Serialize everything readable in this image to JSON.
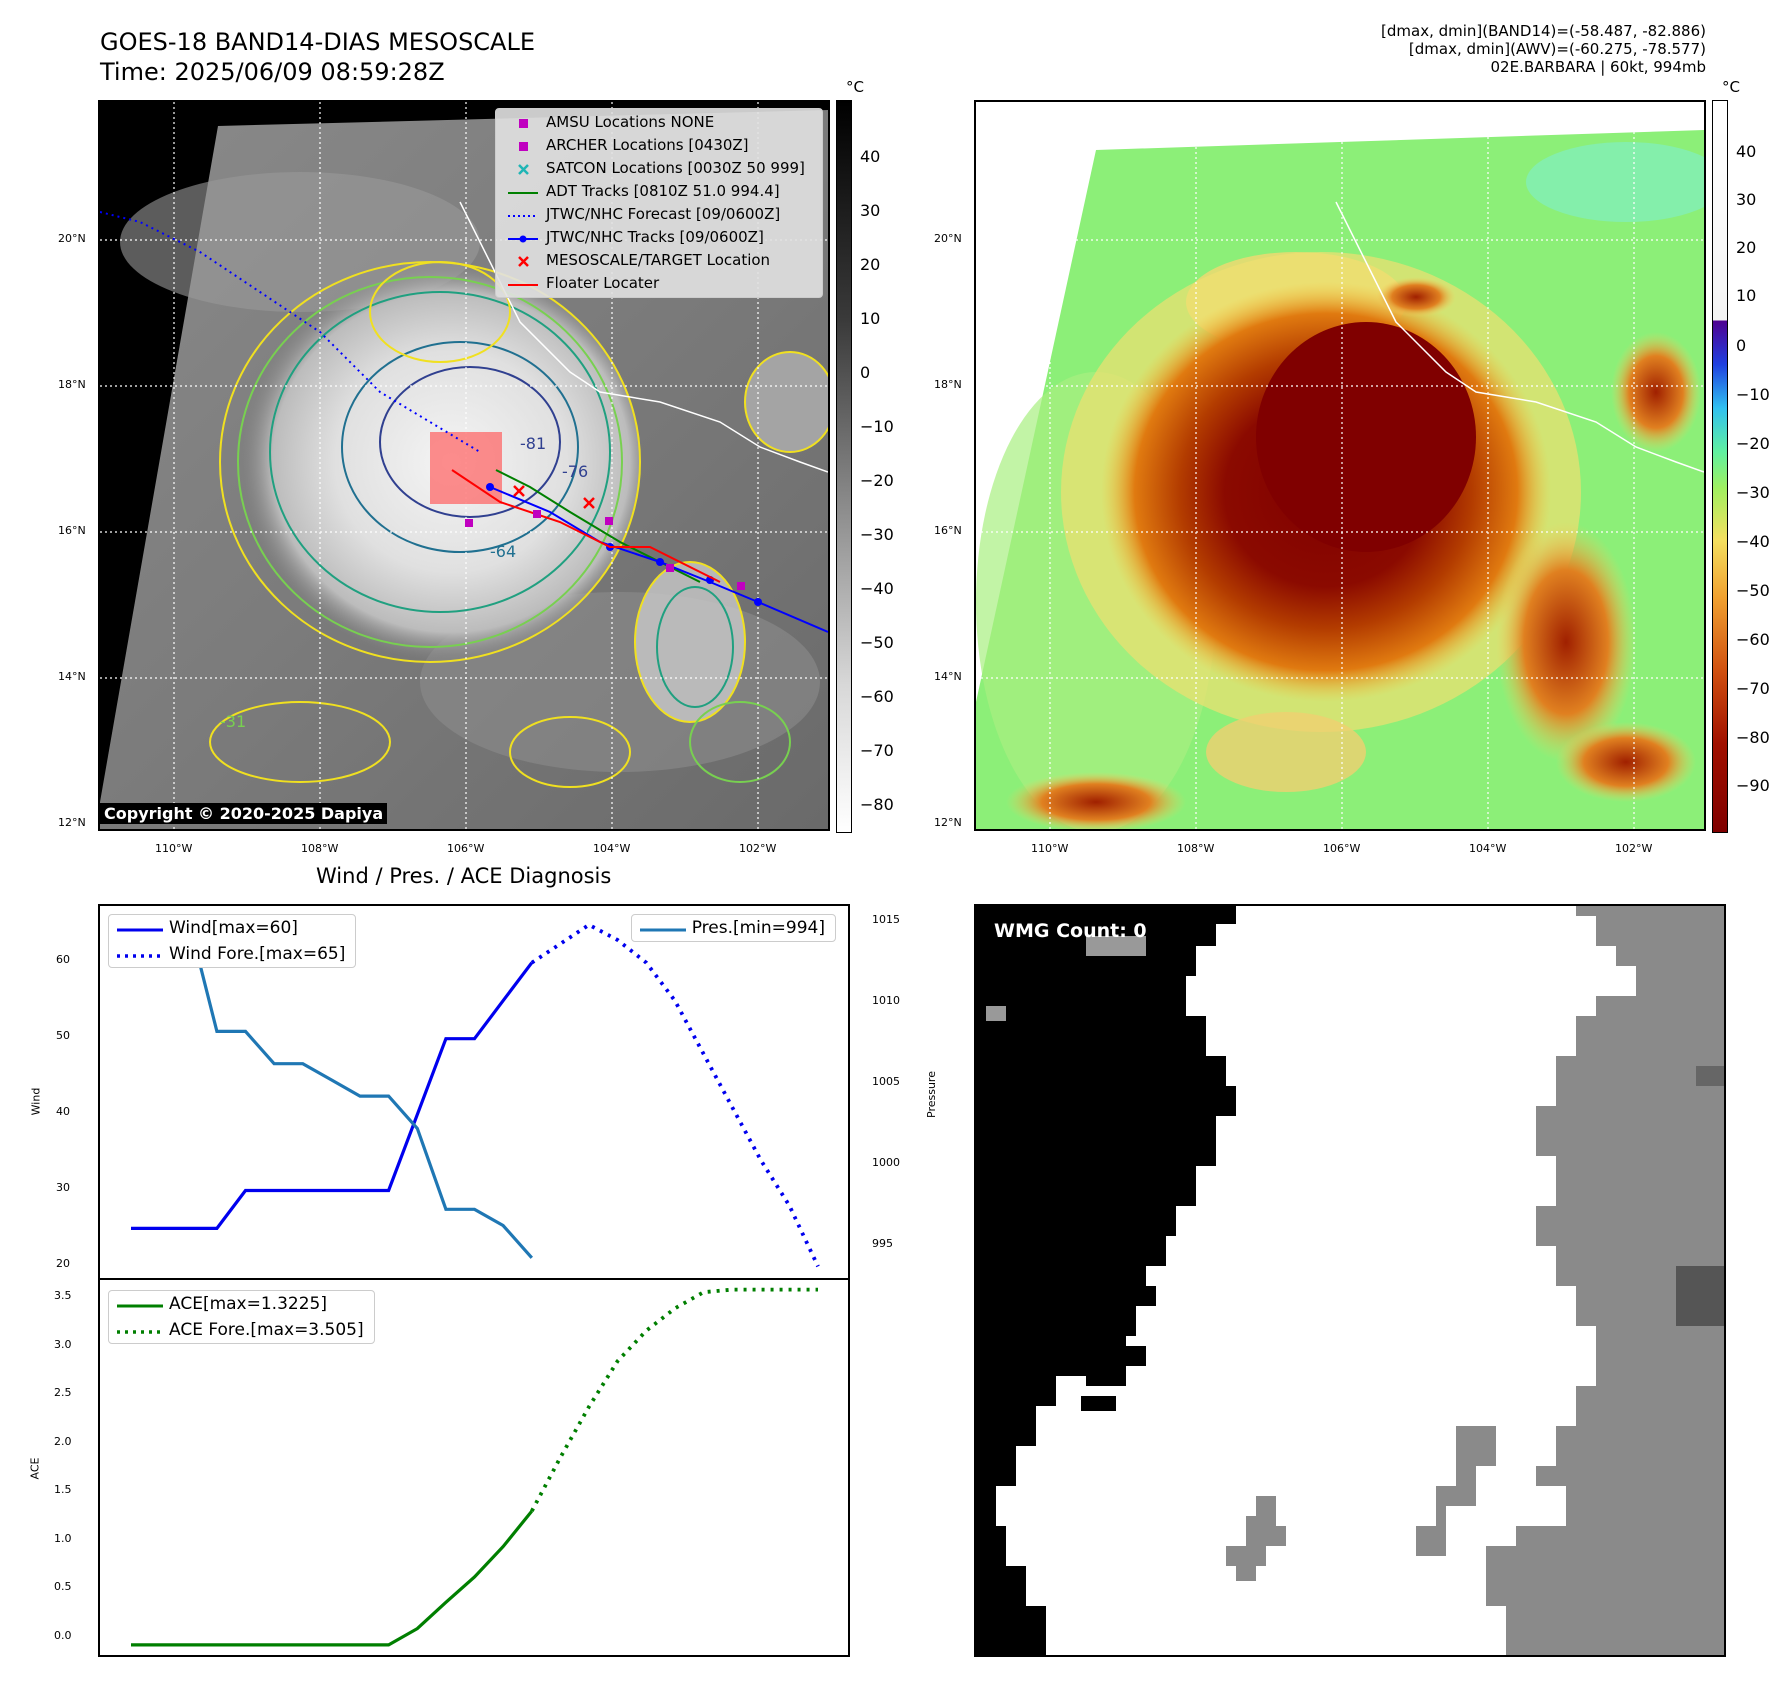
{
  "header": {
    "title_line1": "GOES-18 BAND14-DIAS MESOSCALE",
    "title_line2": "Time: 2025/06/09 08:59:28Z",
    "info_line1": "[dmax, dmin](BAND14)=(-58.487, -82.886)",
    "info_line2": "[dmax, dmin](AWV)=(-60.275, -78.577)",
    "info_line3": "02E.BARBARA | 60kt, 994mb"
  },
  "map": {
    "lat_ticks": [
      "20°N",
      "18°N",
      "16°N",
      "14°N",
      "12°N"
    ],
    "lon_ticks": [
      "110°W",
      "108°W",
      "106°W",
      "104°W",
      "102°W"
    ],
    "contour_labels": [
      "-81",
      "-76",
      "-64",
      "-31"
    ],
    "legend": [
      {
        "label": "AMSU Locations NONE",
        "icon": "square-marker",
        "color": "#c000c0"
      },
      {
        "label": "ARCHER Locations [0430Z]",
        "icon": "square-marker",
        "color": "#c000c0"
      },
      {
        "label": "SATCON Locations [0030Z 50 999]",
        "icon": "x-marker",
        "color": "#1fb5b5"
      },
      {
        "label": "ADT Tracks [0810Z 51.0 994.4]",
        "icon": "line",
        "color": "#008000"
      },
      {
        "label": "JTWC/NHC Forecast [09/0600Z]",
        "icon": "dotted-line",
        "color": "#0000ff"
      },
      {
        "label": "JTWC/NHC Tracks [09/0600Z]",
        "icon": "line-dot",
        "color": "#0000ff"
      },
      {
        "label": "MESOSCALE/TARGET Location",
        "icon": "x-marker",
        "color": "#ff0000"
      },
      {
        "label": "Floater Locater",
        "icon": "line",
        "color": "#ff0000"
      }
    ],
    "copyright": "Copyright © 2020-2025 Dapiya",
    "colorbar_unit": "°C",
    "colorbar_left_ticks": [
      "40",
      "30",
      "20",
      "10",
      "0",
      "−10",
      "−20",
      "−30",
      "−40",
      "−50",
      "−60",
      "−70",
      "−80"
    ],
    "colorbar_right_ticks": [
      "40",
      "30",
      "20",
      "10",
      "0",
      "−10",
      "−20",
      "−30",
      "−40",
      "−50",
      "−60",
      "−70",
      "−80",
      "−90"
    ]
  },
  "diagnosis": {
    "title": "Wind / Pres. / ACE Diagnosis",
    "wind_ylabel": "Wind",
    "pres_ylabel": "Pressure",
    "ace_ylabel": "ACE",
    "wind_ticks": [
      "60",
      "50",
      "40",
      "30",
      "20"
    ],
    "pres_ticks": [
      "1015",
      "1010",
      "1005",
      "1000",
      "995"
    ],
    "ace_ticks": [
      "3.5",
      "3.0",
      "2.5",
      "2.0",
      "1.5",
      "1.0",
      "0.5",
      "0.0"
    ],
    "legend_wind": "Wind[max=60]",
    "legend_wind_fore": "Wind Fore.[max=65]",
    "legend_pres": "Pres.[min=994]",
    "legend_ace": "ACE[max=1.3225]",
    "legend_ace_fore": "ACE Fore.[max=3.505]",
    "colors": {
      "wind": "#0000ee",
      "pres": "#1f77b4",
      "ace": "#007f00"
    }
  },
  "wmg": {
    "label": "WMG Count: 0"
  },
  "chart_data": [
    {
      "type": "line",
      "title": "Wind / Pres. / ACE Diagnosis",
      "ylabel": "Wind",
      "ylim": [
        19,
        68
      ],
      "x": [
        0,
        1,
        2,
        3,
        4,
        5,
        6,
        7,
        8,
        9,
        10,
        11,
        12,
        13,
        14,
        15,
        16,
        17,
        18,
        19,
        20,
        21,
        22,
        23,
        24
      ],
      "series": [
        {
          "name": "Wind[max=60]",
          "values": [
            25,
            25,
            25,
            25,
            30,
            30,
            30,
            30,
            30,
            30,
            40,
            50,
            50,
            55,
            60,
            null,
            null,
            null,
            null,
            null,
            null,
            null,
            null,
            null,
            null
          ]
        },
        {
          "name": "Wind Fore.[max=65]",
          "values": [
            null,
            null,
            null,
            null,
            null,
            null,
            null,
            null,
            null,
            null,
            null,
            null,
            null,
            null,
            60,
            62.5,
            65,
            63,
            60,
            55,
            48,
            41,
            34,
            28,
            20
          ]
        }
      ]
    },
    {
      "type": "line",
      "ylabel": "Pressure",
      "ylim": [
        993,
        1016
      ],
      "x": [
        0,
        1,
        2,
        3,
        4,
        5,
        6,
        7,
        8,
        9,
        10,
        11,
        12,
        13,
        14
      ],
      "series": [
        {
          "name": "Pres.[min=994]",
          "values": [
            1015,
            1015,
            1015,
            1008,
            1008,
            1006,
            1006,
            1005,
            1004,
            1004,
            1002,
            997,
            997,
            996,
            994
          ]
        }
      ]
    },
    {
      "type": "line",
      "ylabel": "ACE",
      "ylim": [
        -0.1,
        3.6
      ],
      "x": [
        0,
        1,
        2,
        3,
        4,
        5,
        6,
        7,
        8,
        9,
        10,
        11,
        12,
        13,
        14,
        15,
        16,
        17,
        18,
        19,
        20,
        21,
        22,
        23,
        24
      ],
      "series": [
        {
          "name": "ACE[max=1.3225]",
          "values": [
            0,
            0,
            0,
            0,
            0,
            0,
            0,
            0,
            0,
            0,
            0.16,
            0.42,
            0.67,
            0.97,
            1.32,
            null,
            null,
            null,
            null,
            null,
            null,
            null,
            null,
            null,
            null
          ]
        },
        {
          "name": "ACE Fore.[max=3.505]",
          "values": [
            null,
            null,
            null,
            null,
            null,
            null,
            null,
            null,
            null,
            null,
            null,
            null,
            null,
            null,
            1.32,
            1.85,
            2.35,
            2.8,
            3.1,
            3.32,
            3.48,
            3.505,
            3.505,
            3.505,
            3.505
          ]
        }
      ]
    }
  ]
}
